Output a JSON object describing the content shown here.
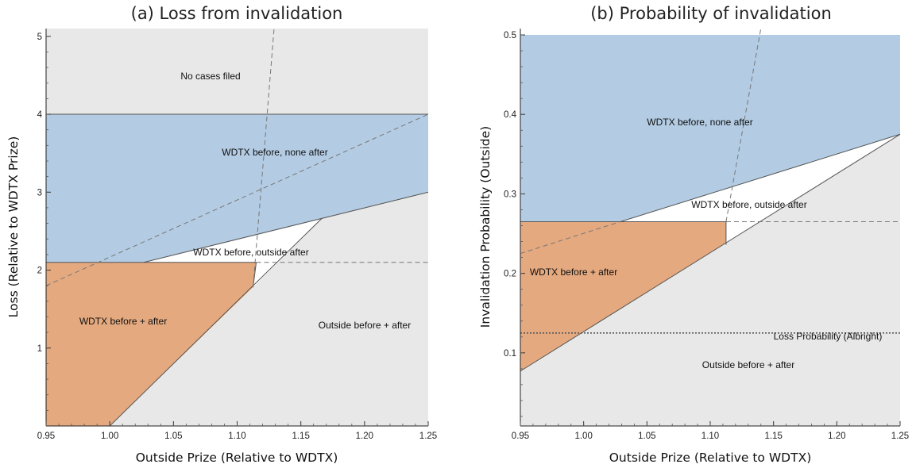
{
  "chart_data": [
    {
      "type": "area",
      "title": "(a) Loss from invalidation",
      "xlabel": "Outside Prize (Relative to WDTX)",
      "ylabel": "Loss (Relative to WDTX Prize)",
      "xlim": [
        0.95,
        1.25
      ],
      "ylim": [
        0,
        5.1
      ],
      "xticks": [
        "0.95",
        "1.00",
        "1.05",
        "1.10",
        "1.15",
        "1.20",
        "1.25"
      ],
      "yticks": [
        "1",
        "2",
        "3",
        "4",
        "5"
      ],
      "regions": [
        {
          "label": "No cases filed",
          "color": "#e8e8e8",
          "polygon": [
            [
              0.95,
              4.0
            ],
            [
              1.25,
              4.0
            ],
            [
              1.25,
              5.1
            ],
            [
              0.95,
              5.1
            ]
          ]
        },
        {
          "label": "WDTX before, none after",
          "color": "#b3cce3",
          "polygon": [
            [
              0.95,
              2.1
            ],
            [
              1.0267,
              2.1
            ],
            [
              1.1667,
              2.667
            ],
            [
              1.25,
              3.0
            ],
            [
              1.25,
              4.0
            ],
            [
              0.95,
              4.0
            ]
          ]
        },
        {
          "label": "WDTX before, outside after",
          "color": "#ffffff",
          "polygon": [
            [
              1.0267,
              2.1
            ],
            [
              1.1667,
              2.667
            ],
            [
              1.1125,
              1.78
            ],
            [
              1.115,
              2.1
            ]
          ]
        },
        {
          "label": "WDTX before + after",
          "color": "#e4a97f",
          "polygon": [
            [
              0.95,
              0
            ],
            [
              1.0,
              0
            ],
            [
              1.1125,
              1.78
            ],
            [
              1.115,
              2.1
            ],
            [
              0.95,
              2.1
            ]
          ]
        },
        {
          "label": "Outside before + after",
          "color": "#e8e8e8",
          "polygon": [
            [
              1.0,
              0
            ],
            [
              1.25,
              0
            ],
            [
              1.25,
              3.0
            ],
            [
              1.1667,
              2.667
            ],
            [
              1.1125,
              1.78
            ]
          ]
        }
      ],
      "lines": [
        {
          "style": "solid",
          "points": [
            [
              0.95,
              4.0
            ],
            [
              1.25,
              4.0
            ]
          ]
        },
        {
          "style": "solid",
          "points": [
            [
              0.95,
              2.1
            ],
            [
              1.115,
              2.1
            ]
          ]
        },
        {
          "style": "solid",
          "points": [
            [
              1.0267,
              2.1
            ],
            [
              1.25,
              3.0
            ]
          ]
        },
        {
          "style": "solid",
          "points": [
            [
              1.0,
              0
            ],
            [
              1.1667,
              2.667
            ]
          ]
        },
        {
          "style": "solid",
          "points": [
            [
              1.1125,
              1.78
            ],
            [
              1.115,
              2.1
            ]
          ]
        },
        {
          "style": "dashed",
          "points": [
            [
              1.115,
              2.1
            ],
            [
              1.25,
              2.1
            ]
          ]
        },
        {
          "style": "dashed",
          "points": [
            [
              0.95,
              1.8
            ],
            [
              1.25,
              4.0
            ]
          ]
        },
        {
          "style": "dashed",
          "points": [
            [
              1.1125,
              1.78
            ],
            [
              1.129,
              5.1
            ]
          ]
        }
      ]
    },
    {
      "type": "area",
      "title": "(b) Probability of invalidation",
      "xlabel": "Outside Prize (Relative to WDTX)",
      "ylabel": "Invalidation Probability (Outside)",
      "xlim": [
        0.95,
        1.25
      ],
      "ylim": [
        0.008,
        0.508
      ],
      "xticks": [
        "0.95",
        "1.00",
        "1.05",
        "1.10",
        "1.15",
        "1.20",
        "1.25"
      ],
      "yticks": [
        "0.1",
        "0.2",
        "0.3",
        "0.4",
        "0.5"
      ],
      "regions": [
        {
          "label": "WDTX before, none after",
          "color": "#b3cce3",
          "polygon": [
            [
              0.95,
              0.265
            ],
            [
              1.029,
              0.265
            ],
            [
              1.25,
              0.375
            ],
            [
              1.25,
              0.5
            ],
            [
              0.95,
              0.5
            ]
          ]
        },
        {
          "label": "WDTX before, outside after",
          "color": "#ffffff",
          "polygon": [
            [
              1.029,
              0.265
            ],
            [
              1.25,
              0.375
            ],
            [
              1.1125,
              0.236
            ],
            [
              1.1125,
              0.265
            ]
          ]
        },
        {
          "label": "WDTX before + after",
          "color": "#e4a97f",
          "polygon": [
            [
              0.95,
              0.077
            ],
            [
              1.1125,
              0.236
            ],
            [
              1.1125,
              0.265
            ],
            [
              0.95,
              0.265
            ]
          ]
        },
        {
          "label": "Outside before + after",
          "color": "#e8e8e8",
          "polygon": [
            [
              0.95,
              0.008
            ],
            [
              1.25,
              0.008
            ],
            [
              1.25,
              0.375
            ],
            [
              0.95,
              0.077
            ]
          ]
        }
      ],
      "lines": [
        {
          "style": "solid",
          "points": [
            [
              0.95,
              0.265
            ],
            [
              1.1125,
              0.265
            ]
          ]
        },
        {
          "style": "solid",
          "points": [
            [
              1.029,
              0.265
            ],
            [
              1.25,
              0.375
            ]
          ]
        },
        {
          "style": "solid",
          "points": [
            [
              0.95,
              0.077
            ],
            [
              1.25,
              0.375
            ]
          ]
        },
        {
          "style": "solid",
          "points": [
            [
              1.1125,
              0.236
            ],
            [
              1.1125,
              0.265
            ]
          ]
        },
        {
          "style": "dashed",
          "points": [
            [
              1.1125,
              0.265
            ],
            [
              1.25,
              0.265
            ]
          ]
        },
        {
          "style": "dashed",
          "points": [
            [
              0.95,
              0.225
            ],
            [
              1.029,
              0.265
            ]
          ]
        },
        {
          "style": "dashed",
          "points": [
            [
              1.1125,
              0.265
            ],
            [
              1.14,
              0.508
            ]
          ]
        },
        {
          "style": "dotted",
          "points": [
            [
              0.95,
              0.125
            ],
            [
              1.25,
              0.125
            ]
          ]
        }
      ],
      "annotation": {
        "label": "Loss Probability (Albright)",
        "value": 0.125
      }
    }
  ]
}
